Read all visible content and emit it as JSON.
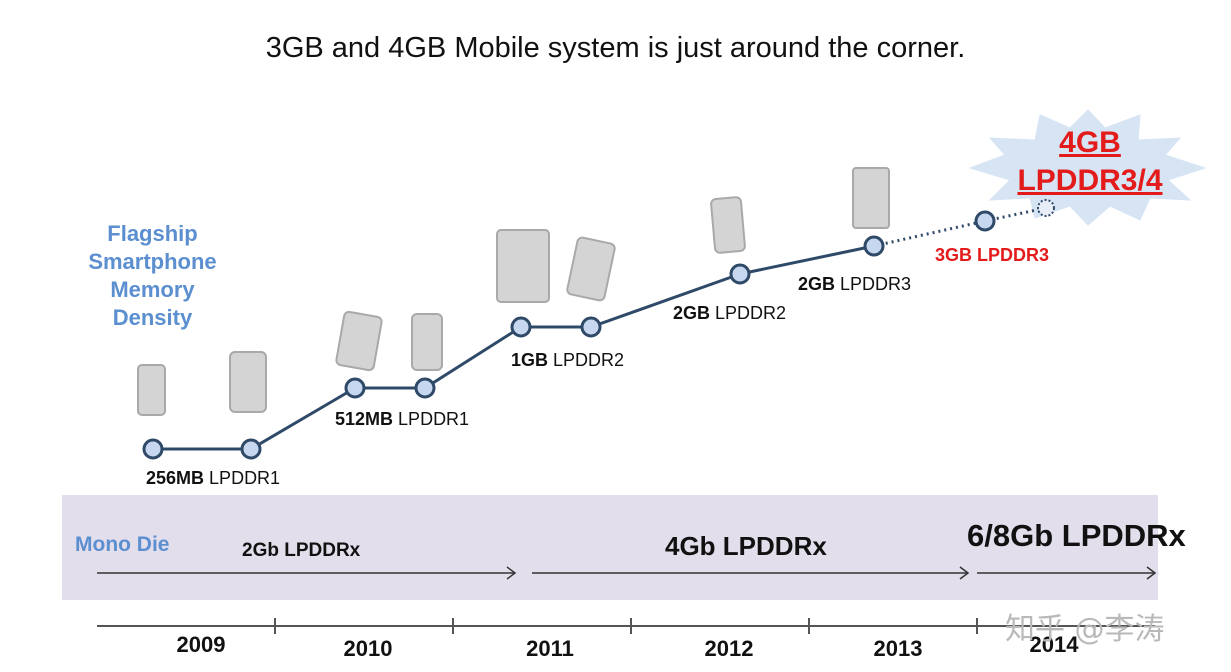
{
  "title": "3GB and 4GB Mobile system is just around the corner.",
  "side_label": [
    "Flagship",
    "Smartphone",
    "Memory",
    "Density"
  ],
  "callout": {
    "line1": "4GB",
    "line2": "LPDDR3/4"
  },
  "chart_data": {
    "type": "line",
    "title": "3GB and 4GB Mobile system is just around the corner.",
    "ylabel": "Flagship Smartphone Memory Density",
    "x": [
      2009.0,
      2009.5,
      2010.0,
      2010.5,
      2011.0,
      2011.5,
      2012.0,
      2012.5,
      2013.0,
      2013.5,
      2013.9
    ],
    "points": [
      {
        "year": 2009.0,
        "memory_gb": 0.25,
        "label_bold": "256MB",
        "label_rest": "LPDDR1",
        "style": "solid"
      },
      {
        "year": 2009.5,
        "memory_gb": 0.25,
        "label_bold": "",
        "label_rest": "",
        "style": "solid"
      },
      {
        "year": 2010.0,
        "memory_gb": 0.5,
        "label_bold": "512MB",
        "label_rest": "LPDDR1",
        "style": "solid"
      },
      {
        "year": 2010.4,
        "memory_gb": 0.5,
        "label_bold": "",
        "label_rest": "",
        "style": "solid"
      },
      {
        "year": 2011.0,
        "memory_gb": 1,
        "label_bold": "1GB",
        "label_rest": "LPDDR2",
        "style": "solid"
      },
      {
        "year": 2011.4,
        "memory_gb": 1,
        "label_bold": "",
        "label_rest": "",
        "style": "solid"
      },
      {
        "year": 2012.2,
        "memory_gb": 2,
        "label_bold": "2GB",
        "label_rest": "LPDDR2",
        "style": "solid"
      },
      {
        "year": 2012.95,
        "memory_gb": 2,
        "label_bold": "2GB",
        "label_rest": "LPDDR3",
        "style": "solid"
      },
      {
        "year": 2013.6,
        "memory_gb": 3,
        "label_bold": "3GB LPDDR3",
        "label_rest": "",
        "style": "dotted"
      },
      {
        "year": 2013.95,
        "memory_gb": 4,
        "label_bold": "",
        "label_rest": "",
        "style": "dotted-open"
      }
    ],
    "die_generations": [
      {
        "label": "Mono Die",
        "period": ""
      },
      {
        "label": "2Gb LPDDRx",
        "from": 2009,
        "to": 2011
      },
      {
        "label": "4Gb LPDDRx",
        "from": 2011,
        "to": 2013.9
      },
      {
        "label": "6/8Gb LPDDRx",
        "from": 2013.9,
        "to": 2014.9
      }
    ],
    "years": [
      "2009",
      "2010",
      "2011",
      "2012",
      "2013",
      "2014"
    ]
  },
  "watermark": "知乎 @李涛",
  "colors": {
    "line": "#2f4a68",
    "node_fill": "#c7d7ef",
    "highlight": "#e31b1b",
    "side_label": "#5b8fd0",
    "band": "#e3deec"
  }
}
